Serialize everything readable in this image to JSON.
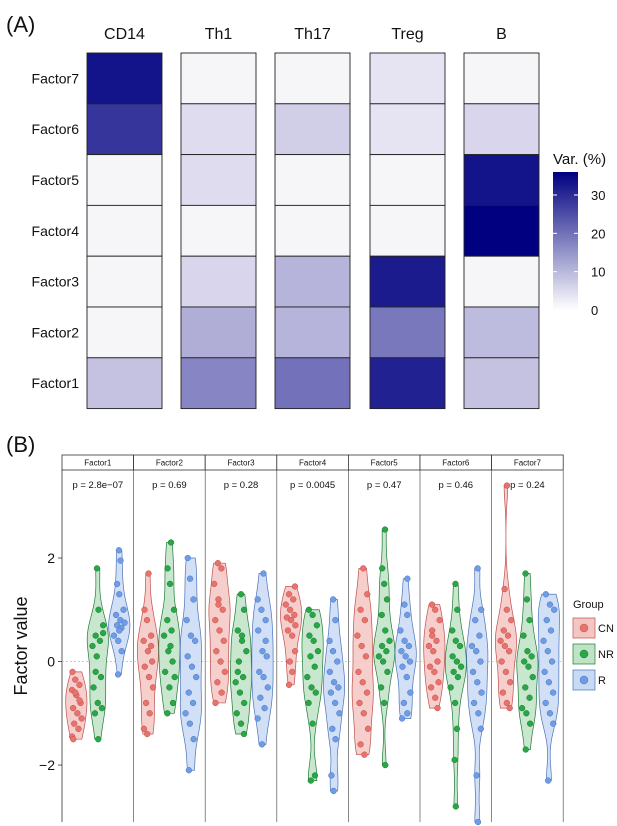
{
  "panelA_label": "(A)",
  "panelB_label": "(B)",
  "chart_data": [
    {
      "type": "heatmap",
      "columns": [
        "CD14",
        "Th1",
        "Th17",
        "Treg",
        "B"
      ],
      "rows": [
        "Factor7",
        "Factor6",
        "Factor5",
        "Factor4",
        "Factor3",
        "Factor2",
        "Factor1"
      ],
      "values": [
        [
          33,
          1,
          1,
          2,
          1
        ],
        [
          28,
          3,
          5,
          2,
          4
        ],
        [
          1,
          3,
          1,
          1,
          33
        ],
        [
          1,
          1,
          1,
          1,
          36
        ],
        [
          1,
          4,
          9,
          32,
          1
        ],
        [
          1,
          10,
          9,
          18,
          8
        ],
        [
          7,
          16,
          19,
          31,
          7
        ]
      ],
      "legend_title": "Var. (%)",
      "legend_ticks": [
        0,
        10,
        20,
        30
      ],
      "vmin": 0,
      "vmax": 36,
      "color_low": "#ffffff",
      "color_high": "#000080"
    },
    {
      "type": "scatter",
      "subtype": "violin",
      "ylabel": "Factor value",
      "ylim": [
        -3.1,
        3.7
      ],
      "yticks": [
        -2,
        0,
        2
      ],
      "reference_line": 0,
      "legend_title": "Group",
      "groups": [
        {
          "name": "CN",
          "fill": "#f4c6c3",
          "point": "#e8726c",
          "stroke": "#c0504d"
        },
        {
          "name": "NR",
          "fill": "#bfe3c5",
          "point": "#27a745",
          "stroke": "#1f7a36"
        },
        {
          "name": "R",
          "fill": "#c9daf5",
          "point": "#6f9ce6",
          "stroke": "#4a73bb"
        }
      ],
      "panels": [
        {
          "title": "Factor1",
          "pvalue": "p = 2.8e−07",
          "data": {
            "CN": [
              -0.2,
              -0.35,
              -0.45,
              -0.55,
              -0.65,
              -0.8,
              -0.9,
              -1.0,
              -1.1,
              -1.2,
              -1.3,
              -1.45,
              -0.6,
              -0.75,
              -1.5
            ],
            "NR": [
              1.8,
              1.0,
              0.7,
              0.5,
              0.4,
              0.3,
              0.1,
              -0.3,
              -0.5,
              -0.8,
              -0.9,
              -1.0,
              -1.5,
              0.55,
              -0.2
            ],
            "R": [
              2.15,
              1.95,
              1.5,
              1.3,
              1.0,
              0.9,
              0.8,
              0.75,
              0.7,
              0.65,
              0.5,
              0.4,
              0.2,
              -0.25,
              0.6
            ]
          }
        },
        {
          "title": "Factor2",
          "pvalue": "p = 0.69",
          "data": {
            "CN": [
              1.7,
              1.0,
              0.8,
              0.5,
              0.4,
              0.2,
              0.0,
              -0.1,
              -0.3,
              -0.5,
              -0.8,
              -1.0,
              -1.3,
              -1.4,
              0.3
            ],
            "NR": [
              2.3,
              1.8,
              1.5,
              1.0,
              0.8,
              0.6,
              0.5,
              0.2,
              0.0,
              -0.2,
              -0.5,
              -0.8,
              -1.0,
              0.3,
              -0.3
            ],
            "R": [
              2.0,
              1.6,
              1.2,
              0.8,
              0.5,
              0.4,
              0.1,
              -0.1,
              -0.3,
              -0.6,
              -0.8,
              -1.0,
              -1.2,
              -1.5,
              -2.1
            ]
          }
        },
        {
          "title": "Factor3",
          "pvalue": "p = 0.28",
          "data": {
            "CN": [
              1.9,
              1.8,
              1.5,
              1.2,
              1.0,
              0.8,
              0.6,
              0.4,
              0.2,
              0.0,
              -0.2,
              -0.4,
              -0.6,
              -0.8,
              1.1
            ],
            "NR": [
              1.3,
              1.0,
              0.6,
              0.4,
              0.2,
              0.0,
              -0.3,
              -0.4,
              -0.6,
              -0.8,
              -1.0,
              -1.2,
              -1.4,
              -0.2,
              0.5
            ],
            "R": [
              1.7,
              1.2,
              1.0,
              0.8,
              0.6,
              0.2,
              0.1,
              -0.2,
              -0.3,
              -0.5,
              -0.7,
              -0.9,
              -1.1,
              -1.6,
              0.4
            ]
          }
        },
        {
          "title": "Factor4",
          "pvalue": "p = 0.0045",
          "data": {
            "CN": [
              1.45,
              1.3,
              1.2,
              1.1,
              1.0,
              0.9,
              0.85,
              0.8,
              0.7,
              0.6,
              0.5,
              0.2,
              0.0,
              -0.2,
              -0.45
            ],
            "NR": [
              1.0,
              0.9,
              0.7,
              0.5,
              0.4,
              0.2,
              0.1,
              -0.1,
              -0.3,
              -0.5,
              -0.6,
              -0.8,
              -1.2,
              -2.2,
              -2.3
            ],
            "R": [
              1.2,
              0.8,
              0.4,
              0.2,
              0.0,
              -0.2,
              -0.4,
              -0.5,
              -0.6,
              -0.8,
              -1.0,
              -1.3,
              -1.5,
              -2.2,
              -2.5
            ]
          }
        },
        {
          "title": "Factor5",
          "pvalue": "p = 0.47",
          "data": {
            "CN": [
              1.8,
              1.3,
              1.0,
              0.8,
              0.5,
              0.3,
              0.1,
              -0.2,
              -0.4,
              -0.6,
              -0.8,
              -1.0,
              -1.3,
              -1.6,
              -1.8
            ],
            "NR": [
              2.55,
              1.8,
              1.5,
              1.2,
              0.9,
              0.6,
              0.4,
              0.3,
              0.2,
              0.1,
              0.0,
              -0.2,
              -0.5,
              -0.8,
              -2.0
            ],
            "R": [
              1.6,
              1.1,
              0.9,
              0.6,
              0.4,
              0.3,
              0.2,
              0.1,
              0.0,
              -0.1,
              -0.3,
              -0.6,
              -0.8,
              -1.0,
              -1.1
            ]
          }
        },
        {
          "title": "Factor6",
          "pvalue": "p = 0.46",
          "data": {
            "CN": [
              1.1,
              1.0,
              0.8,
              0.6,
              0.4,
              0.3,
              0.2,
              0.0,
              -0.1,
              -0.2,
              -0.4,
              -0.5,
              -0.7,
              -0.9,
              0.5
            ],
            "NR": [
              1.5,
              1.0,
              0.6,
              0.4,
              0.3,
              0.1,
              0.0,
              -0.1,
              -0.2,
              -0.3,
              -0.5,
              -0.8,
              -1.3,
              -1.9,
              -2.8
            ],
            "R": [
              1.8,
              1.0,
              0.8,
              0.5,
              0.3,
              0.2,
              0.0,
              -0.2,
              -0.4,
              -0.6,
              -0.8,
              -1.0,
              -1.3,
              -2.2,
              -3.1
            ]
          }
        },
        {
          "title": "Factor7",
          "pvalue": "p = 0.24",
          "data": {
            "CN": [
              3.4,
              1.4,
              1.0,
              0.8,
              0.6,
              0.5,
              0.4,
              0.3,
              0.2,
              0.0,
              -0.2,
              -0.4,
              -0.6,
              -0.8,
              -0.9
            ],
            "NR": [
              1.7,
              1.2,
              0.8,
              0.5,
              0.2,
              0.1,
              0.0,
              -0.1,
              -0.3,
              -0.5,
              -0.7,
              -0.9,
              -1.0,
              -1.2,
              -1.7
            ],
            "R": [
              1.3,
              1.1,
              1.0,
              0.8,
              0.6,
              0.4,
              0.2,
              0.0,
              -0.2,
              -0.4,
              -0.6,
              -0.8,
              -1.0,
              -1.2,
              -2.3
            ]
          }
        }
      ]
    }
  ]
}
